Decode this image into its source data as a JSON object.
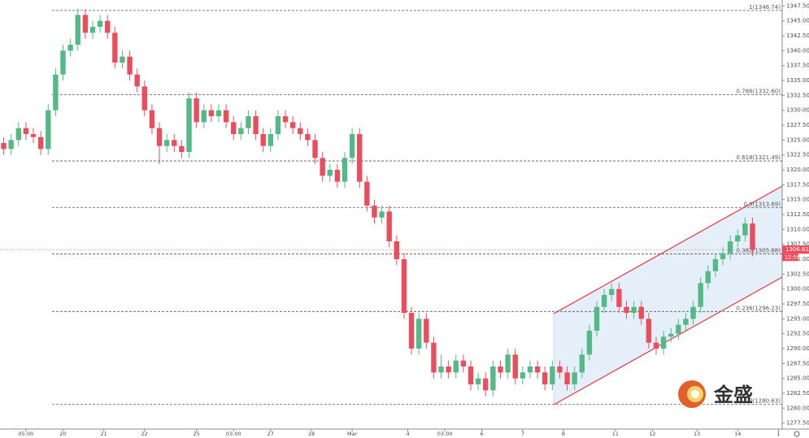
{
  "chart_data": {
    "type": "candlestick",
    "up_color": "#53b987",
    "down_color": "#eb4d5c",
    "xlim": [
      -0.5,
      105
    ],
    "ylim": [
      1276.5,
      1348.5
    ],
    "xticks": [
      {
        "value": 3,
        "label": "05:00"
      },
      {
        "value": 8,
        "label": "20"
      },
      {
        "value": 13.5,
        "label": "21"
      },
      {
        "value": 19,
        "label": "22"
      },
      {
        "value": 26,
        "label": "25"
      },
      {
        "value": 31,
        "label": "03:00"
      },
      {
        "value": 36,
        "label": "27"
      },
      {
        "value": 41.5,
        "label": "28"
      },
      {
        "value": 47,
        "label": "Mar"
      },
      {
        "value": 54.5,
        "label": "4"
      },
      {
        "value": 59.5,
        "label": "03:00"
      },
      {
        "value": 64.5,
        "label": "6"
      },
      {
        "value": 70,
        "label": "7"
      },
      {
        "value": 75.5,
        "label": "8"
      },
      {
        "value": 82.5,
        "label": "11"
      },
      {
        "value": 87.5,
        "label": "12"
      },
      {
        "value": 93.5,
        "label": "13"
      },
      {
        "value": 99,
        "label": "14"
      },
      {
        "value": 104.5,
        "label": "1"
      }
    ],
    "yticks": [
      {
        "value": 1277.5,
        "label": "1277.50"
      },
      {
        "value": 1280,
        "label": "1280.00"
      },
      {
        "value": 1282.5,
        "label": "1282.50"
      },
      {
        "value": 1285,
        "label": "1285.00"
      },
      {
        "value": 1287.5,
        "label": "1287.50"
      },
      {
        "value": 1290,
        "label": "1290.00"
      },
      {
        "value": 1292.5,
        "label": "1292.50"
      },
      {
        "value": 1295,
        "label": "1295.00"
      },
      {
        "value": 1297.5,
        "label": "1297.50"
      },
      {
        "value": 1300,
        "label": "1300.00"
      },
      {
        "value": 1302.5,
        "label": "1302.50"
      },
      {
        "value": 1305,
        "label": "1305.00"
      },
      {
        "value": 1307.5,
        "label": "1307.50"
      },
      {
        "value": 1310,
        "label": "1310.00"
      },
      {
        "value": 1312.5,
        "label": "1312.50"
      },
      {
        "value": 1315,
        "label": "1315.00"
      },
      {
        "value": 1317.5,
        "label": "1317.50"
      },
      {
        "value": 1320,
        "label": "1320.00"
      },
      {
        "value": 1322.5,
        "label": "1322.50"
      },
      {
        "value": 1325,
        "label": "1325.00"
      },
      {
        "value": 1327.5,
        "label": "1327.50"
      },
      {
        "value": 1330,
        "label": "1330.00"
      },
      {
        "value": 1332.5,
        "label": "1332.50"
      },
      {
        "value": 1335,
        "label": "1335.00"
      },
      {
        "value": 1337.5,
        "label": "1337.50"
      },
      {
        "value": 1340,
        "label": "1340.00"
      },
      {
        "value": 1342.5,
        "label": "1342.50"
      },
      {
        "value": 1345,
        "label": "1345.00"
      },
      {
        "value": 1347.5,
        "label": "1347.50"
      }
    ],
    "levels": [
      {
        "value": 1346.74,
        "label": "1(1346.74)"
      },
      {
        "value": 1332.6,
        "label": "0.786(1332.60)"
      },
      {
        "value": 1321.49,
        "label": "0.618(1321.49)"
      },
      {
        "value": 1313.69,
        "label": "0.5(1313.69)"
      },
      {
        "value": 1305.88,
        "label": "0.382(1305.88)"
      },
      {
        "value": 1296.23,
        "label": "0.236(1296.23)"
      },
      {
        "value": 1280.63,
        "label": "0(1280.63)"
      }
    ],
    "last_price": 1306.61,
    "countdown": "12:56",
    "watermark": "金盛",
    "open": [
      1324.5,
      1323.5,
      1325,
      1327,
      1326,
      1325.5,
      1323.5,
      1330,
      1336,
      1340,
      1341,
      1346,
      1343,
      1344,
      1345,
      1343,
      1338,
      1339,
      1336,
      1334,
      1330,
      1327,
      1324,
      1325,
      1324,
      1323,
      1332,
      1328,
      1330,
      1329,
      1330,
      1328,
      1326,
      1327,
      1329,
      1326,
      1324,
      1326,
      1329,
      1328,
      1327,
      1326,
      1325,
      1322,
      1319,
      1320,
      1318,
      1322,
      1326,
      1318,
      1314,
      1312,
      1313,
      1308,
      1305,
      1296,
      1290,
      1295,
      1291,
      1286,
      1287,
      1286,
      1288,
      1287,
      1284,
      1285,
      1283,
      1287,
      1286,
      1289,
      1285,
      1286,
      1287,
      1286,
      1284,
      1287,
      1286,
      1284,
      1286,
      1289,
      1293,
      1297,
      1299,
      1300,
      1297,
      1296,
      1297,
      1295,
      1291,
      1290,
      1292,
      1292.5,
      1294,
      1295,
      1297,
      1301,
      1303,
      1305,
      1306,
      1308,
      1309,
      1311
    ],
    "high": [
      1325.5,
      1326,
      1328,
      1328,
      1327,
      1326.5,
      1331,
      1337,
      1341,
      1342,
      1347,
      1347,
      1345,
      1346,
      1346,
      1344,
      1340,
      1340,
      1337,
      1335,
      1331,
      1328,
      1326,
      1326,
      1325,
      1333,
      1333,
      1331,
      1331,
      1331,
      1331,
      1329,
      1328,
      1330,
      1330,
      1327,
      1327,
      1330,
      1330,
      1329,
      1328,
      1327,
      1326,
      1323,
      1321,
      1321,
      1323,
      1327,
      1327,
      1319,
      1315,
      1314,
      1314,
      1309,
      1306,
      1297,
      1296,
      1296,
      1292,
      1289,
      1288,
      1289,
      1289,
      1288,
      1286,
      1286,
      1288,
      1288,
      1290,
      1290,
      1287,
      1288,
      1288,
      1287,
      1288,
      1288,
      1287,
      1287,
      1290,
      1294,
      1298,
      1300,
      1301,
      1301,
      1298,
      1298,
      1298,
      1296,
      1292,
      1293,
      1293.5,
      1295,
      1296,
      1298,
      1302,
      1304,
      1306,
      1307,
      1309,
      1310,
      1312,
      1312
    ],
    "low": [
      1322.5,
      1322.5,
      1324,
      1325,
      1324.5,
      1322.5,
      1322.5,
      1329,
      1335,
      1339,
      1340,
      1342,
      1342,
      1343,
      1342,
      1337,
      1337,
      1335,
      1333,
      1329,
      1326,
      1321,
      1323,
      1323,
      1322,
      1322,
      1327,
      1327,
      1328,
      1328,
      1327,
      1325,
      1325,
      1326,
      1325,
      1323,
      1323,
      1325,
      1327,
      1326,
      1325,
      1324,
      1321,
      1318,
      1318,
      1317,
      1317,
      1321,
      1317,
      1313,
      1311,
      1311,
      1307,
      1304,
      1295,
      1289,
      1289,
      1290,
      1285,
      1285,
      1285,
      1285,
      1286,
      1283,
      1283,
      1282,
      1282,
      1285,
      1285,
      1284,
      1284,
      1285,
      1285,
      1283,
      1283,
      1285,
      1283,
      1283,
      1285,
      1288,
      1292,
      1296,
      1298,
      1296,
      1295,
      1295,
      1294,
      1290,
      1289,
      1289,
      1291,
      1291.5,
      1293,
      1294,
      1296,
      1300,
      1302,
      1304,
      1305,
      1307,
      1308,
      1305.5
    ],
    "close": [
      1323.5,
      1325,
      1327,
      1326,
      1325.5,
      1323.5,
      1330,
      1336,
      1340,
      1341,
      1346,
      1343,
      1344,
      1345,
      1343,
      1338,
      1339,
      1336,
      1334,
      1330,
      1327,
      1324,
      1325,
      1324,
      1323,
      1332,
      1328,
      1330,
      1329,
      1330,
      1328,
      1326,
      1327,
      1329,
      1326,
      1324,
      1326,
      1329,
      1328,
      1327,
      1326,
      1325,
      1322,
      1319,
      1320,
      1318,
      1322,
      1326,
      1318,
      1314,
      1312,
      1313,
      1308,
      1305,
      1296,
      1290,
      1295,
      1291,
      1286,
      1287,
      1286,
      1288,
      1287,
      1284,
      1285,
      1283,
      1287,
      1286,
      1289,
      1285,
      1286,
      1287,
      1286,
      1284,
      1287,
      1286,
      1284,
      1286,
      1289,
      1293,
      1297,
      1299,
      1300,
      1297,
      1296,
      1297,
      1295,
      1291,
      1290,
      1292,
      1292.5,
      1294,
      1295,
      1297,
      1301,
      1303,
      1305,
      1306,
      1308,
      1309,
      1311,
      1306.61
    ]
  }
}
